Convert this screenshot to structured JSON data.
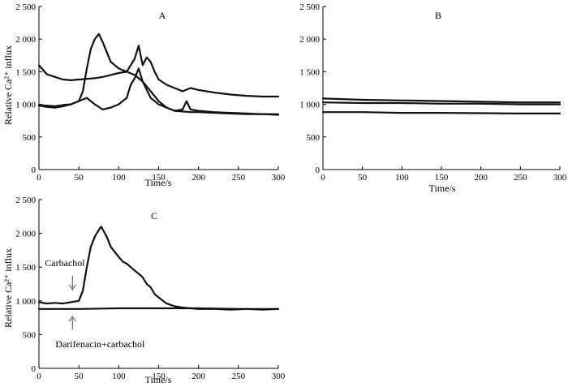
{
  "chart_data": [
    {
      "type": "line",
      "panel_label": "A",
      "xlabel": "Time/s",
      "ylabel": "Relative Ca²⁺ influx",
      "xlim": [
        0,
        300
      ],
      "ylim": [
        0,
        2500
      ],
      "xticks": [
        "0",
        "50",
        "100",
        "150",
        "200",
        "250",
        "300"
      ],
      "yticks": [
        "0",
        "500",
        "1 000",
        "1 500",
        "2 000",
        "2 500"
      ],
      "series": [
        {
          "x": [
            0,
            10,
            20,
            30,
            40,
            50,
            55,
            60,
            65,
            70,
            75,
            80,
            85,
            90,
            100,
            110,
            120,
            130,
            140,
            150,
            160,
            170,
            180,
            190,
            200,
            220,
            240,
            260,
            280,
            300
          ],
          "values": [
            990,
            980,
            970,
            990,
            1000,
            1050,
            1200,
            1550,
            1850,
            2000,
            2080,
            1950,
            1800,
            1650,
            1550,
            1500,
            1450,
            1350,
            1200,
            1050,
            950,
            900,
            890,
            880,
            880,
            870,
            860,
            850,
            850,
            840
          ]
        },
        {
          "x": [
            0,
            5,
            10,
            20,
            30,
            40,
            50,
            60,
            70,
            80,
            90,
            100,
            110,
            120,
            125,
            130,
            135,
            140,
            145,
            150,
            160,
            170,
            180,
            190,
            200,
            210,
            220,
            240,
            260,
            280,
            300
          ],
          "values": [
            1600,
            1530,
            1460,
            1420,
            1380,
            1370,
            1380,
            1390,
            1400,
            1420,
            1450,
            1480,
            1500,
            1700,
            1900,
            1600,
            1720,
            1650,
            1500,
            1380,
            1300,
            1250,
            1200,
            1250,
            1220,
            1200,
            1180,
            1150,
            1130,
            1120,
            1120
          ]
        },
        {
          "x": [
            0,
            10,
            20,
            30,
            40,
            50,
            60,
            70,
            80,
            90,
            100,
            110,
            115,
            120,
            125,
            130,
            140,
            150,
            160,
            170,
            180,
            185,
            190,
            200,
            220,
            240,
            260,
            280,
            300
          ],
          "values": [
            980,
            960,
            950,
            970,
            1000,
            1050,
            1100,
            1000,
            920,
            950,
            1000,
            1100,
            1300,
            1400,
            1550,
            1350,
            1100,
            1000,
            950,
            900,
            920,
            1050,
            920,
            900,
            880,
            870,
            860,
            850,
            850
          ]
        }
      ]
    },
    {
      "type": "line",
      "panel_label": "B",
      "xlabel": "Time/s",
      "ylabel": "",
      "xlim": [
        0,
        300
      ],
      "ylim": [
        0,
        2500
      ],
      "xticks": [
        "0",
        "50",
        "100",
        "150",
        "200",
        "250",
        "300"
      ],
      "yticks": [
        "0",
        "500",
        "1 000",
        "1 500",
        "2 000",
        "2 500"
      ],
      "series": [
        {
          "x": [
            0,
            50,
            100,
            150,
            200,
            250,
            300
          ],
          "values": [
            1090,
            1070,
            1060,
            1050,
            1040,
            1030,
            1030
          ]
        },
        {
          "x": [
            0,
            50,
            100,
            150,
            200,
            250,
            300
          ],
          "values": [
            1030,
            1020,
            1020,
            1010,
            1010,
            1000,
            1000
          ]
        },
        {
          "x": [
            0,
            50,
            100,
            150,
            200,
            250,
            300
          ],
          "values": [
            880,
            880,
            870,
            870,
            865,
            860,
            860
          ]
        }
      ]
    },
    {
      "type": "line",
      "panel_label": "C",
      "xlabel": "Time/s",
      "ylabel": "Relative Ca²⁺ influx",
      "xlim": [
        0,
        300
      ],
      "ylim": [
        0,
        2500
      ],
      "xticks": [
        "0",
        "50",
        "100",
        "150",
        "200",
        "250",
        "300"
      ],
      "yticks": [
        "0",
        "500",
        "1 000",
        "1 500",
        "2 000",
        "2 500"
      ],
      "annotations": [
        {
          "text": "Carbachol",
          "arrow": "down",
          "x": 42,
          "y": 1250
        },
        {
          "text": "Darifenacin+carbachol",
          "arrow": "up",
          "x": 42,
          "y": 600
        }
      ],
      "series": [
        {
          "x": [
            0,
            10,
            20,
            30,
            40,
            50,
            55,
            60,
            65,
            70,
            75,
            78,
            85,
            90,
            100,
            105,
            110,
            115,
            120,
            125,
            130,
            135,
            140,
            145,
            150,
            160,
            170,
            180,
            200,
            220,
            240,
            260,
            280,
            300
          ],
          "values": [
            980,
            960,
            970,
            960,
            980,
            1000,
            1150,
            1500,
            1800,
            1950,
            2050,
            2100,
            1950,
            1800,
            1650,
            1580,
            1550,
            1500,
            1450,
            1400,
            1350,
            1250,
            1200,
            1100,
            1050,
            960,
            920,
            900,
            880,
            880,
            870,
            880,
            870,
            880
          ]
        },
        {
          "x": [
            0,
            50,
            100,
            150,
            200,
            250,
            300
          ],
          "values": [
            880,
            880,
            890,
            890,
            890,
            880,
            880
          ]
        }
      ]
    }
  ]
}
